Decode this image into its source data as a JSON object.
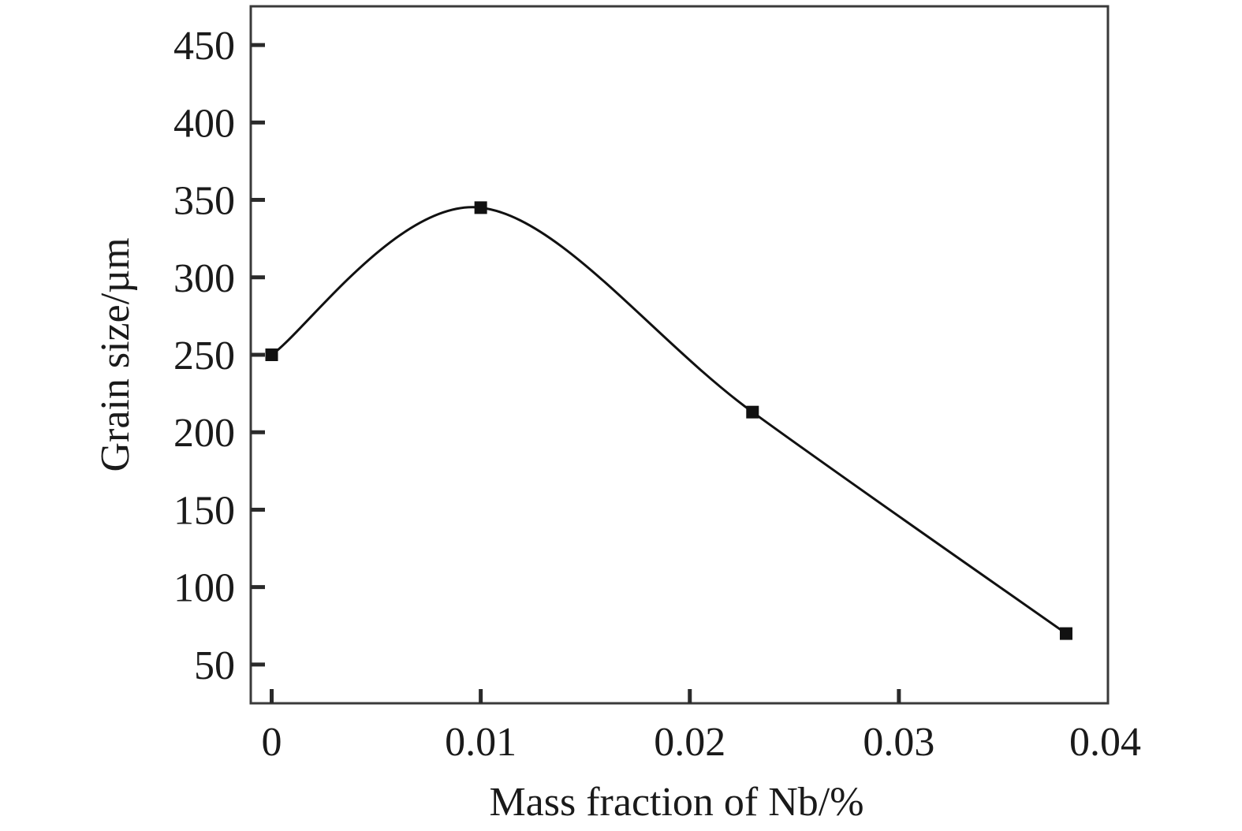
{
  "chart_data": {
    "type": "line",
    "xlabel": "Mass fraction of Nb/%",
    "ylabel": "Grain size/µm",
    "xlim": [
      -0.001,
      0.04
    ],
    "ylim": [
      25,
      475
    ],
    "xticks": [
      0,
      0.01,
      0.02,
      0.03,
      0.04
    ],
    "xtick_labels": [
      "0",
      "0.01",
      "0.02",
      "0.03",
      "0.04"
    ],
    "yticks": [
      50,
      100,
      150,
      200,
      250,
      300,
      350,
      400,
      450
    ],
    "ytick_labels": [
      "50",
      "100",
      "150",
      "200",
      "250",
      "300",
      "350",
      "400",
      "450"
    ],
    "grid": false,
    "series": [
      {
        "marker": "square",
        "smooth": true,
        "color": "#111111",
        "x": [
          0,
          0.01,
          0.023,
          0.038
        ],
        "y": [
          250,
          345,
          213,
          70
        ]
      }
    ]
  }
}
